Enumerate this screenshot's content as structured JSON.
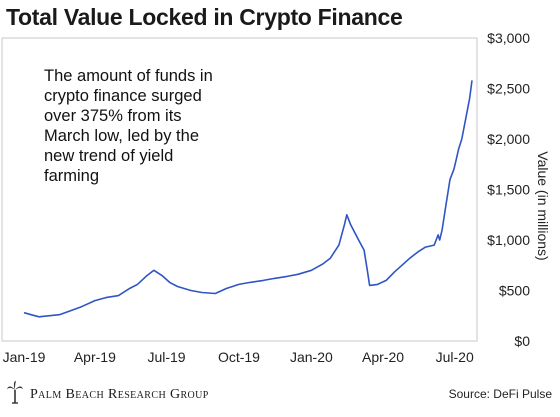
{
  "chart_data": {
    "type": "line",
    "title": "Total Value Locked in Crypto Finance",
    "annotation": [
      "The amount of funds in",
      "crypto finance surged",
      "over 375% from its",
      "March low, led by the",
      "new trend of yield",
      "farming"
    ],
    "ylabel": "Value (in millions)",
    "ylim": [
      0,
      3000
    ],
    "yticks": [
      0,
      500,
      1000,
      1500,
      2000,
      2500,
      3000
    ],
    "ytick_labels": [
      "$0",
      "$500",
      "$1,000",
      "$1,500",
      "$2,000",
      "$2,500",
      "$3,000"
    ],
    "x_range": [
      "2019-01-01",
      "2020-07-23"
    ],
    "xtick_labels": [
      {
        "date": "2019-01-01",
        "label": "Jan-19"
      },
      {
        "date": "2019-04-01",
        "label": "Apr-19"
      },
      {
        "date": "2019-07-01",
        "label": "Jul-19"
      },
      {
        "date": "2019-10-01",
        "label": "Oct-19"
      },
      {
        "date": "2020-01-01",
        "label": "Jan-20"
      },
      {
        "date": "2020-04-01",
        "label": "Apr-20"
      },
      {
        "date": "2020-07-01",
        "label": "Jul-20"
      }
    ],
    "grid": false,
    "series": [
      {
        "color": "#2f55c4",
        "x": [
          "2019-01-01",
          "2019-01-10",
          "2019-01-20",
          "2019-02-01",
          "2019-02-15",
          "2019-03-01",
          "2019-03-15",
          "2019-04-01",
          "2019-04-15",
          "2019-05-01",
          "2019-05-15",
          "2019-05-25",
          "2019-06-05",
          "2019-06-15",
          "2019-06-25",
          "2019-07-05",
          "2019-07-15",
          "2019-08-01",
          "2019-08-15",
          "2019-09-01",
          "2019-09-15",
          "2019-10-01",
          "2019-10-15",
          "2019-11-01",
          "2019-11-15",
          "2019-12-01",
          "2019-12-15",
          "2020-01-01",
          "2020-01-15",
          "2020-01-25",
          "2020-02-05",
          "2020-02-12",
          "2020-02-15",
          "2020-02-20",
          "2020-03-01",
          "2020-03-08",
          "2020-03-12",
          "2020-03-15",
          "2020-03-25",
          "2020-04-05",
          "2020-04-15",
          "2020-04-25",
          "2020-05-05",
          "2020-05-15",
          "2020-05-25",
          "2020-06-05",
          "2020-06-10",
          "2020-06-12",
          "2020-06-15",
          "2020-06-20",
          "2020-06-25",
          "2020-06-30",
          "2020-07-03",
          "2020-07-06",
          "2020-07-10",
          "2020-07-15",
          "2020-07-20",
          "2020-07-23"
        ],
        "y": [
          280,
          260,
          240,
          250,
          260,
          300,
          340,
          400,
          430,
          450,
          520,
          560,
          640,
          700,
          650,
          580,
          540,
          500,
          480,
          470,
          520,
          560,
          580,
          600,
          620,
          640,
          660,
          700,
          760,
          820,
          950,
          1150,
          1250,
          1150,
          1000,
          900,
          700,
          550,
          560,
          600,
          680,
          750,
          820,
          880,
          930,
          950,
          1050,
          1000,
          1100,
          1350,
          1600,
          1700,
          1800,
          1900,
          2000,
          2200,
          2400,
          2580
        ]
      }
    ]
  },
  "footer": {
    "logo_text": "Palm Beach Research Group",
    "source": "Source: DeFi Pulse"
  },
  "colors": {
    "line": "#2f55c4",
    "frame": "#c8c8c8"
  },
  "icons": {
    "logo": "palm-tree-logo-icon"
  }
}
